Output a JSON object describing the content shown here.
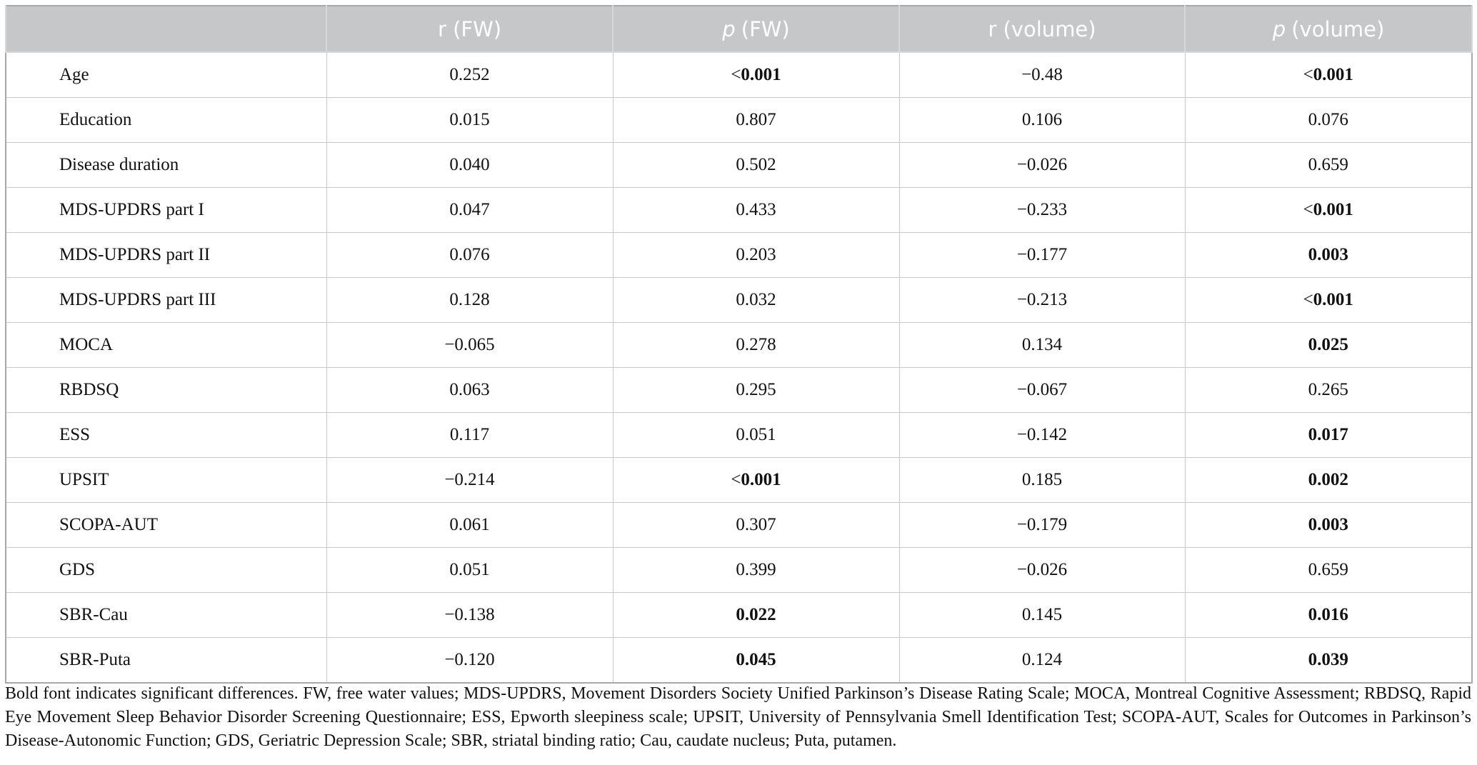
{
  "table": {
    "header": [
      "",
      "r (FW)",
      {
        "italic": "p",
        "text": "(FW)"
      },
      "r (volume)",
      {
        "italic": "p",
        "text": "(volume)"
      }
    ],
    "rows": [
      [
        "Age",
        "0.252",
        {
          "plain": "<",
          "bold": "0.001"
        },
        "−0.48",
        {
          "plain": "<",
          "bold": "0.001"
        }
      ],
      [
        "Education",
        "0.015",
        "0.807",
        "0.106",
        "0.076"
      ],
      [
        "Disease duration",
        "0.040",
        "0.502",
        "−0.026",
        "0.659"
      ],
      [
        "MDS-UPDRS part I",
        "0.047",
        "0.433",
        "−0.233",
        {
          "plain": "<",
          "bold": "0.001"
        }
      ],
      [
        "MDS-UPDRS part II",
        "0.076",
        "0.203",
        "−0.177",
        {
          "bold": "0.003"
        }
      ],
      [
        "MDS-UPDRS part III",
        "0.128",
        "0.032",
        "−0.213",
        {
          "plain": "<",
          "bold": "0.001"
        }
      ],
      [
        "MOCA",
        "−0.065",
        "0.278",
        "0.134",
        {
          "bold": "0.025"
        }
      ],
      [
        "RBDSQ",
        "0.063",
        "0.295",
        "−0.067",
        "0.265"
      ],
      [
        "ESS",
        "0.117",
        "0.051",
        "−0.142",
        {
          "bold": "0.017"
        }
      ],
      [
        "UPSIT",
        "−0.214",
        {
          "plain": "<",
          "bold": "0.001"
        },
        "0.185",
        {
          "bold": "0.002"
        }
      ],
      [
        "SCOPA-AUT",
        "0.061",
        "0.307",
        "−0.179",
        {
          "bold": "0.003"
        }
      ],
      [
        "GDS",
        "0.051",
        "0.399",
        "−0.026",
        "0.659"
      ],
      [
        "SBR-Cau",
        "−0.138",
        {
          "bold": "0.022"
        },
        "0.145",
        {
          "bold": "0.016"
        }
      ],
      [
        "SBR-Puta",
        "−0.120",
        {
          "bold": "0.045"
        },
        "0.124",
        {
          "bold": "0.039"
        }
      ]
    ]
  },
  "footnote": "Bold font indicates significant differences. FW, free water values; MDS-UPDRS, Movement Disorders Society Unified Parkinson’s Disease Rating Scale; MOCA, Montreal Cognitive Assessment; RBDSQ, Rapid Eye Movement Sleep Behavior Disorder Screening Questionnaire; ESS, Epworth sleepiness scale; UPSIT, University of Pennsylvania Smell Identification Test; SCOPA-AUT, Scales for Outcomes in Parkinson’s Disease-Autonomic Function; GDS, Geriatric Depression Scale; SBR, striatal binding ratio; Cau, caudate nucleus; Puta, putamen."
}
